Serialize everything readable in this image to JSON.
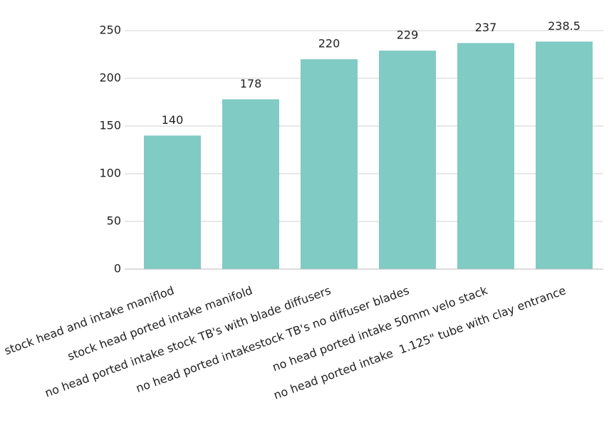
{
  "chart_data": {
    "type": "bar",
    "categories": [
      "stock head and intake maniflod",
      "stock head ported intake manifold",
      "no head ported intake stock TB's with blade diffusers",
      "no head ported intakestock TB's no diffuser blades",
      "no head ported intake 50mm velo stack",
      "no head ported intake  1.125\" tube with clay entrance"
    ],
    "values": [
      140,
      178,
      220,
      229,
      237,
      238.5
    ],
    "color": "#80cbc4",
    "ylim": [
      0,
      250
    ],
    "yticks": [
      0,
      50,
      100,
      150,
      200,
      250
    ],
    "grid": true
  }
}
